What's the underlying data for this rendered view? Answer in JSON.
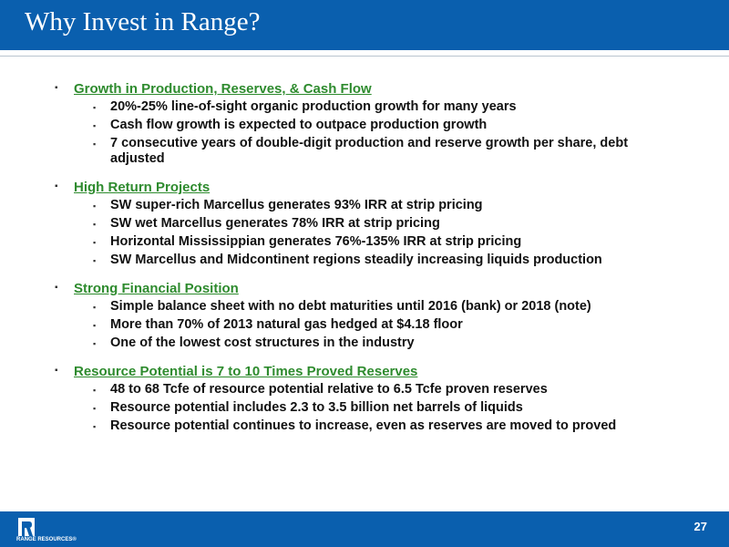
{
  "slide": {
    "title": "Why Invest in Range?",
    "page_number": "27"
  },
  "footer": {
    "logo_text": "RANGE RESOURCES®"
  },
  "bullet_glyph": "▪",
  "sections": [
    {
      "heading": "Growth in Production, Reserves, & Cash Flow",
      "items": [
        "20%-25% line-of-sight organic production growth for many years",
        "Cash flow growth is expected to outpace production growth",
        "7 consecutive years of double-digit production and reserve growth per share, debt adjusted"
      ]
    },
    {
      "heading": "High Return Projects",
      "items": [
        "SW super-rich Marcellus generates 93% IRR at strip pricing",
        "SW wet Marcellus generates 78% IRR at strip pricing",
        "Horizontal Mississippian generates 76%-135% IRR at strip pricing",
        "SW Marcellus and Midcontinent regions steadily increasing liquids production"
      ]
    },
    {
      "heading": "Strong Financial Position",
      "items": [
        "Simple balance sheet with no debt maturities until 2016 (bank) or 2018 (note)",
        "More than 70% of 2013 natural gas hedged at $4.18 floor",
        "One of the lowest cost structures in the industry"
      ]
    },
    {
      "heading": "Resource Potential is 7 to 10 Times Proved Reserves",
      "items": [
        "48 to 68 Tcfe of resource potential relative to 6.5 Tcfe proven reserves",
        "Resource potential includes 2.3 to 3.5 billion net barrels of liquids",
        "Resource potential continues to increase, even as reserves are moved to proved"
      ]
    }
  ],
  "colors": {
    "brand_blue": "#0a5fae",
    "heading_green": "#2e8b2e"
  }
}
